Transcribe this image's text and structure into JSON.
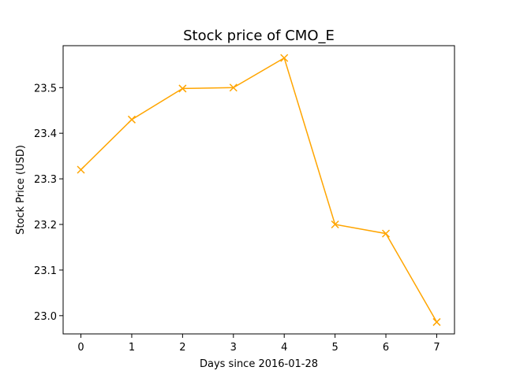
{
  "chart_data": {
    "type": "line",
    "title": "Stock price of CMO_E",
    "xlabel": "Days since 2016-01-28",
    "ylabel": "Stock Price (USD)",
    "x": [
      0,
      1,
      2,
      3,
      4,
      5,
      6,
      7
    ],
    "series": [
      {
        "values": [
          23.32,
          23.43,
          23.498,
          23.5,
          23.565,
          23.2,
          23.18,
          22.986
        ],
        "color": "#FFA500",
        "marker": "x"
      }
    ],
    "xticks": [
      "0",
      "1",
      "2",
      "3",
      "4",
      "5",
      "6",
      "7"
    ],
    "yticks": [
      "23.0",
      "23.1",
      "23.2",
      "23.3",
      "23.4",
      "23.5"
    ],
    "xlim": [
      -0.35,
      7.35
    ],
    "ylim": [
      22.96,
      23.592
    ],
    "grid": false,
    "legend": "none"
  }
}
